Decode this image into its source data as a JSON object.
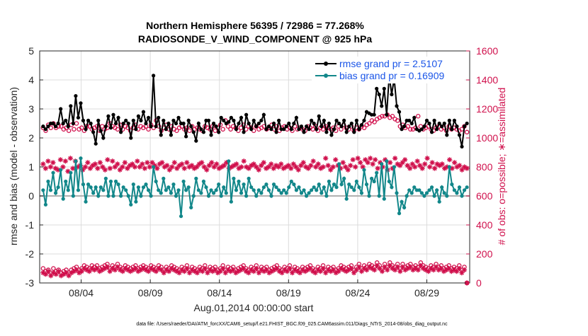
{
  "colors": {
    "rmse": "#000000",
    "bias": "#12878a",
    "obs": "#d0104c",
    "grid": "#dcdcdc",
    "zero": "#b0b0b0"
  },
  "chart_data": {
    "type": "line",
    "title_line1": "Northern Hemisphere 56395 / 72986 = 77.268%",
    "title_line2": "RADIOSONDE_V_WIND_COMPONENT @ 925 hPa",
    "xlabel": "Aug.01,2014 00:00:00 start",
    "ylabel_left": "rmse and bias (model - observation)",
    "ylabel_right": "# of obs: o=possible; ∗=assimilated",
    "footer": "data file: /Users/raeder/DAI/ATM_forcXX/CAM6_setup/f.e21.FHIST_BGC.f09_025.CAM6assim.011/Diags_NTrS_2014-08/obs_diag_output.nc",
    "xlim": [
      0,
      31.1
    ],
    "ylim_left": [
      -3,
      5
    ],
    "ylim_right": [
      0,
      1600
    ],
    "x_ticks": [
      {
        "x": 3,
        "label": "08/04"
      },
      {
        "x": 8,
        "label": "08/09"
      },
      {
        "x": 13,
        "label": "08/14"
      },
      {
        "x": 18,
        "label": "08/19"
      },
      {
        "x": 23,
        "label": "08/24"
      },
      {
        "x": 28,
        "label": "08/29"
      }
    ],
    "y_ticks_left": [
      "-3",
      "-2",
      "-1",
      "0",
      "1",
      "2",
      "3",
      "4",
      "5"
    ],
    "y_ticks_right": [
      "0",
      "200",
      "400",
      "600",
      "800",
      "1000",
      "1200",
      "1400",
      "1600"
    ],
    "legend": [
      {
        "series": "rmse",
        "label": "rmse grand pr = 2.5107"
      },
      {
        "series": "bias",
        "label": "bias grand pr = 0.16909"
      }
    ],
    "series": [
      {
        "name": "rmse",
        "axis": "left",
        "values": [
          2.4,
          2.3,
          2.4,
          2.5,
          2.5,
          2.4,
          2.5,
          3.0,
          2.5,
          2.6,
          2.4,
          3.1,
          2.5,
          3.45,
          2.7,
          3.2,
          2.6,
          2.3,
          2.6,
          2.5,
          2.2,
          1.8,
          2.6,
          2.25,
          2.0,
          2.4,
          2.75,
          2.35,
          2.8,
          2.5,
          2.7,
          2.2,
          2.5,
          2.6,
          2.5,
          2.0,
          2.6,
          2.3,
          2.75,
          2.6,
          2.9,
          2.5,
          2.7,
          2.4,
          4.15,
          2.4,
          2.7,
          2.1,
          2.6,
          2.3,
          2.5,
          2.1,
          2.6,
          2.5,
          2.7,
          2.5,
          2.5,
          2.05,
          2.6,
          2.4,
          2.2,
          1.9,
          2.5,
          2.3,
          2.2,
          2.6,
          2.6,
          2.1,
          2.5,
          2.4,
          2.2,
          2.7,
          2.6,
          2.5,
          2.55,
          2.7,
          2.6,
          2.3,
          2.5,
          2.7,
          2.2,
          2.8,
          2.5,
          2.3,
          2.6,
          2.4,
          2.5,
          2.6,
          2.8,
          2.3,
          2.4,
          2.3,
          2.5,
          2.2,
          2.6,
          2.3,
          2.3,
          2.4,
          2.5,
          2.3,
          2.5,
          2.7,
          2.3,
          2.4,
          2.2,
          2.4,
          2.3,
          2.6,
          2.5,
          2.3,
          2.75,
          2.4,
          2.6,
          2.2,
          2.5,
          2.1,
          2.3,
          2.6,
          2.5,
          2.4,
          2.6,
          2.2,
          2.4,
          2.5,
          2.2,
          2.6,
          2.3,
          2.45,
          2.6,
          2.9,
          2.85,
          2.8,
          2.8,
          3.7,
          3.5,
          3.1,
          3.7,
          2.8,
          4.15,
          3.5,
          4.05,
          3.1,
          2.9,
          2.3,
          2.4,
          2.6,
          2.6,
          2.5,
          2.7,
          2.3,
          2.25,
          2.3,
          2.4,
          2.6,
          2.5,
          2.2,
          2.6,
          2.3,
          2.5,
          2.4,
          2.5,
          2.1,
          2.6,
          2.3,
          2.6,
          2.4,
          2.1,
          1.7,
          2.4,
          2.5
        ]
      },
      {
        "name": "bias",
        "axis": "left",
        "values": [
          0.2,
          -0.3,
          0.5,
          0.2,
          0.8,
          0.1,
          0.3,
          0.9,
          -0.1,
          0.5,
          0.2,
          0.8,
          0.0,
          1.2,
          0.2,
          1.3,
          0.4,
          -0.2,
          0.4,
          0.3,
          0.1,
          0.3,
          0.0,
          0.3,
          0.2,
          0.6,
          0.0,
          0.5,
          0.0,
          0.5,
          0.4,
          0.0,
          0.3,
          0.2,
          0.0,
          -0.3,
          0.4,
          -0.2,
          0.3,
          0.0,
          0.3,
          0.4,
          0.2,
          0.0,
          1.0,
          0.5,
          0.2,
          0.1,
          0.6,
          0.2,
          0.3,
          0.1,
          0.4,
          0.0,
          0.2,
          -0.7,
          0.5,
          0.2,
          0.3,
          -0.4,
          0.0,
          0.6,
          0.2,
          0.1,
          0.5,
          0.3,
          0.0,
          0.2,
          0.1,
          0.2,
          0.4,
          0.0,
          0.3,
          0.1,
          1.2,
          -0.2,
          0.6,
          0.2,
          0.5,
          0.1,
          0.4,
          0.0,
          0.6,
          0.3,
          0.2,
          0.0,
          0.2,
          0.1,
          0.3,
          0.4,
          0.2,
          0.0,
          0.4,
          0.3,
          0.2,
          0.1,
          0.2,
          0.1,
          0.3,
          0.5,
          0.4,
          0.2,
          0.3,
          0.1,
          0.2,
          0.0,
          0.1,
          0.2,
          0.3,
          0.2,
          0.4,
          0.1,
          0.3,
          0.0,
          0.5,
          0.2,
          0.4,
          0.3,
          1.1,
          0.4,
          0.6,
          -0.1,
          0.4,
          0.3,
          0.2,
          0.5,
          0.3,
          0.1,
          0.9,
          0.4,
          0.0,
          0.6,
          0.5,
          0.8,
          0.0,
          1.1,
          -0.1,
          1.2,
          0.5,
          0.3,
          1.0,
          0.1,
          -0.6,
          -0.2,
          -0.4,
          0.0,
          0.2,
          0.1,
          0.3,
          0.2,
          0.2,
          0.1,
          0.0,
          0.1,
          0.2,
          0.3,
          0.0,
          0.2,
          -0.2,
          0.3,
          0.1,
          0.0,
          1.0,
          0.4,
          0.2,
          0.1,
          0.3,
          0.0,
          0.2,
          0.3
        ]
      },
      {
        "name": "possible",
        "axis": "right",
        "values": [
          1070,
          1050,
          1090,
          1070,
          1100,
          1070,
          1080,
          1080,
          1060,
          1070,
          1050,
          1090,
          1060,
          1100,
          1060,
          1070,
          1050,
          1080,
          1080,
          1060,
          1070,
          1080,
          1050,
          1080,
          1060,
          1070,
          1100,
          1080,
          1070,
          1060,
          1090,
          1060,
          1080,
          1070,
          1050,
          1070,
          1090,
          1060,
          1080,
          1070,
          1080,
          1060,
          1090,
          1070,
          1120,
          1080,
          1050,
          1070,
          1090,
          1060,
          1080,
          1060,
          1050,
          1070,
          1080,
          1060,
          1070,
          1050,
          1080,
          1060,
          1070,
          1060,
          1050,
          1080,
          1070,
          1060,
          1080,
          1050,
          1070,
          1090,
          1060,
          1120,
          1080,
          1060,
          1080,
          1070,
          1050,
          1070,
          1090,
          1060,
          1080,
          1070,
          1050,
          1080,
          1060,
          1070,
          1080,
          1060,
          1070,
          1090,
          1060,
          1080,
          1050,
          1070,
          1080,
          1060,
          1070,
          1050,
          1080,
          1060,
          1070,
          1060,
          1050,
          1080,
          1070,
          1060,
          1080,
          1050,
          1070,
          1060,
          1080,
          1070,
          1060,
          1070,
          1050,
          1080,
          1060,
          1090,
          1070,
          1060,
          1080,
          1050,
          1070,
          1060,
          1080,
          1070,
          1090,
          1100,
          1120,
          1110,
          1130,
          1140,
          1150,
          1150,
          1160,
          1140,
          1150,
          1130,
          1120,
          1080,
          1090,
          1070,
          1080,
          1060,
          1060,
          1070,
          1150,
          1080,
          1060,
          1070,
          1080,
          1060,
          1050,
          1070,
          1080,
          1060,
          1070,
          1050,
          1080,
          1060,
          1070,
          1060,
          1050,
          1060,
          1080,
          1040
        ]
      },
      {
        "name": "assimilated",
        "axis": "right",
        "values": [
          820,
          790,
          840,
          800,
          830,
          790,
          780,
          850,
          800,
          840,
          770,
          860,
          790,
          840,
          800,
          810,
          780,
          800,
          830,
          790,
          810,
          820,
          790,
          830,
          800,
          780,
          850,
          790,
          840,
          800,
          820,
          780,
          800,
          830,
          790,
          810,
          820,
          800,
          840,
          800,
          820,
          790,
          830,
          800,
          830,
          810,
          790,
          820,
          830,
          800,
          810,
          780,
          800,
          830,
          790,
          810,
          820,
          790,
          830,
          800,
          810,
          790,
          800,
          820,
          830,
          800,
          780,
          810,
          830,
          800,
          820,
          790,
          800,
          810,
          830,
          790,
          800,
          810,
          820,
          790,
          800,
          840,
          800,
          790,
          810,
          820,
          800,
          780,
          810,
          830,
          790,
          800,
          820,
          790,
          810,
          800,
          820,
          790,
          800,
          810,
          790,
          820,
          800,
          780,
          810,
          830,
          800,
          790,
          810,
          840,
          800,
          820,
          790,
          800,
          860,
          810,
          780,
          800,
          850,
          810,
          790,
          830,
          800,
          780,
          810,
          850,
          800,
          860,
          830,
          800,
          850,
          830,
          860,
          820,
          850,
          790,
          830,
          800,
          850,
          780,
          830,
          790,
          860,
          820,
          810,
          830,
          850,
          810,
          790,
          820,
          800,
          840,
          810,
          790,
          820,
          860,
          800,
          830,
          790,
          820,
          810,
          820,
          790,
          800,
          850,
          790,
          830,
          800,
          810,
          780,
          800,
          790
        ]
      },
      {
        "name": "possible_low",
        "axis": "right",
        "values": [
          100,
          80,
          90,
          70,
          100,
          80,
          90,
          70,
          80,
          90,
          70,
          90,
          100,
          110,
          90,
          100,
          120,
          110,
          100,
          120,
          110,
          120,
          100,
          110,
          120,
          130,
          100,
          120,
          110,
          130,
          110,
          100,
          120,
          110,
          100,
          110,
          120,
          100,
          110,
          120,
          110,
          100,
          120,
          110,
          100,
          120,
          110,
          90,
          110,
          100,
          120,
          110,
          100,
          90,
          110,
          100,
          120,
          90,
          110,
          100,
          90,
          110,
          100,
          120,
          90,
          110,
          100,
          110,
          90,
          100,
          120,
          90,
          110,
          100,
          110,
          90,
          100,
          110,
          120,
          100,
          90,
          110,
          100,
          120,
          90,
          110,
          100,
          110,
          90,
          100,
          110,
          120,
          100,
          90,
          110,
          100,
          120,
          90,
          110,
          100,
          90,
          110,
          100,
          110,
          120,
          100,
          90,
          110,
          100,
          120,
          90,
          110,
          100,
          110,
          90,
          100,
          120,
          110,
          100,
          110,
          120,
          90,
          110,
          130,
          100,
          120,
          110,
          130,
          120,
          110,
          140,
          120,
          100,
          130,
          110,
          140,
          120,
          110,
          130,
          100,
          130,
          110,
          120,
          130,
          110,
          120,
          110,
          140,
          120,
          110,
          100,
          120,
          110,
          130,
          110,
          120,
          100,
          110,
          120,
          100,
          110,
          100,
          120,
          90,
          110,
          0
        ]
      },
      {
        "name": "assimilated_low",
        "axis": "right",
        "values": [
          70,
          60,
          80,
          50,
          70,
          60,
          80,
          50,
          60,
          70,
          50,
          70,
          80,
          90,
          70,
          80,
          100,
          90,
          80,
          100,
          90,
          100,
          80,
          90,
          100,
          110,
          80,
          100,
          90,
          110,
          90,
          80,
          100,
          90,
          80,
          90,
          100,
          80,
          90,
          100,
          90,
          80,
          100,
          90,
          80,
          100,
          90,
          70,
          90,
          80,
          100,
          90,
          80,
          70,
          90,
          80,
          100,
          70,
          90,
          80,
          70,
          90,
          80,
          100,
          70,
          90,
          80,
          90,
          70,
          80,
          100,
          70,
          90,
          80,
          90,
          70,
          80,
          90,
          100,
          80,
          70,
          90,
          80,
          100,
          70,
          90,
          80,
          90,
          70,
          80,
          90,
          100,
          80,
          70,
          90,
          80,
          100,
          70,
          90,
          80,
          70,
          90,
          80,
          90,
          100,
          80,
          70,
          90,
          80,
          100,
          70,
          90,
          80,
          90,
          70,
          80,
          100,
          90,
          80,
          90,
          100,
          70,
          90,
          110,
          80,
          100,
          90,
          110,
          100,
          90,
          120,
          100,
          80,
          110,
          90,
          120,
          100,
          90,
          110,
          80,
          110,
          90,
          100,
          110,
          90,
          100,
          90,
          120,
          100,
          90,
          80,
          100,
          90,
          110,
          90,
          100,
          80,
          90,
          100,
          80,
          90,
          80,
          100,
          70,
          90,
          0
        ]
      }
    ]
  }
}
